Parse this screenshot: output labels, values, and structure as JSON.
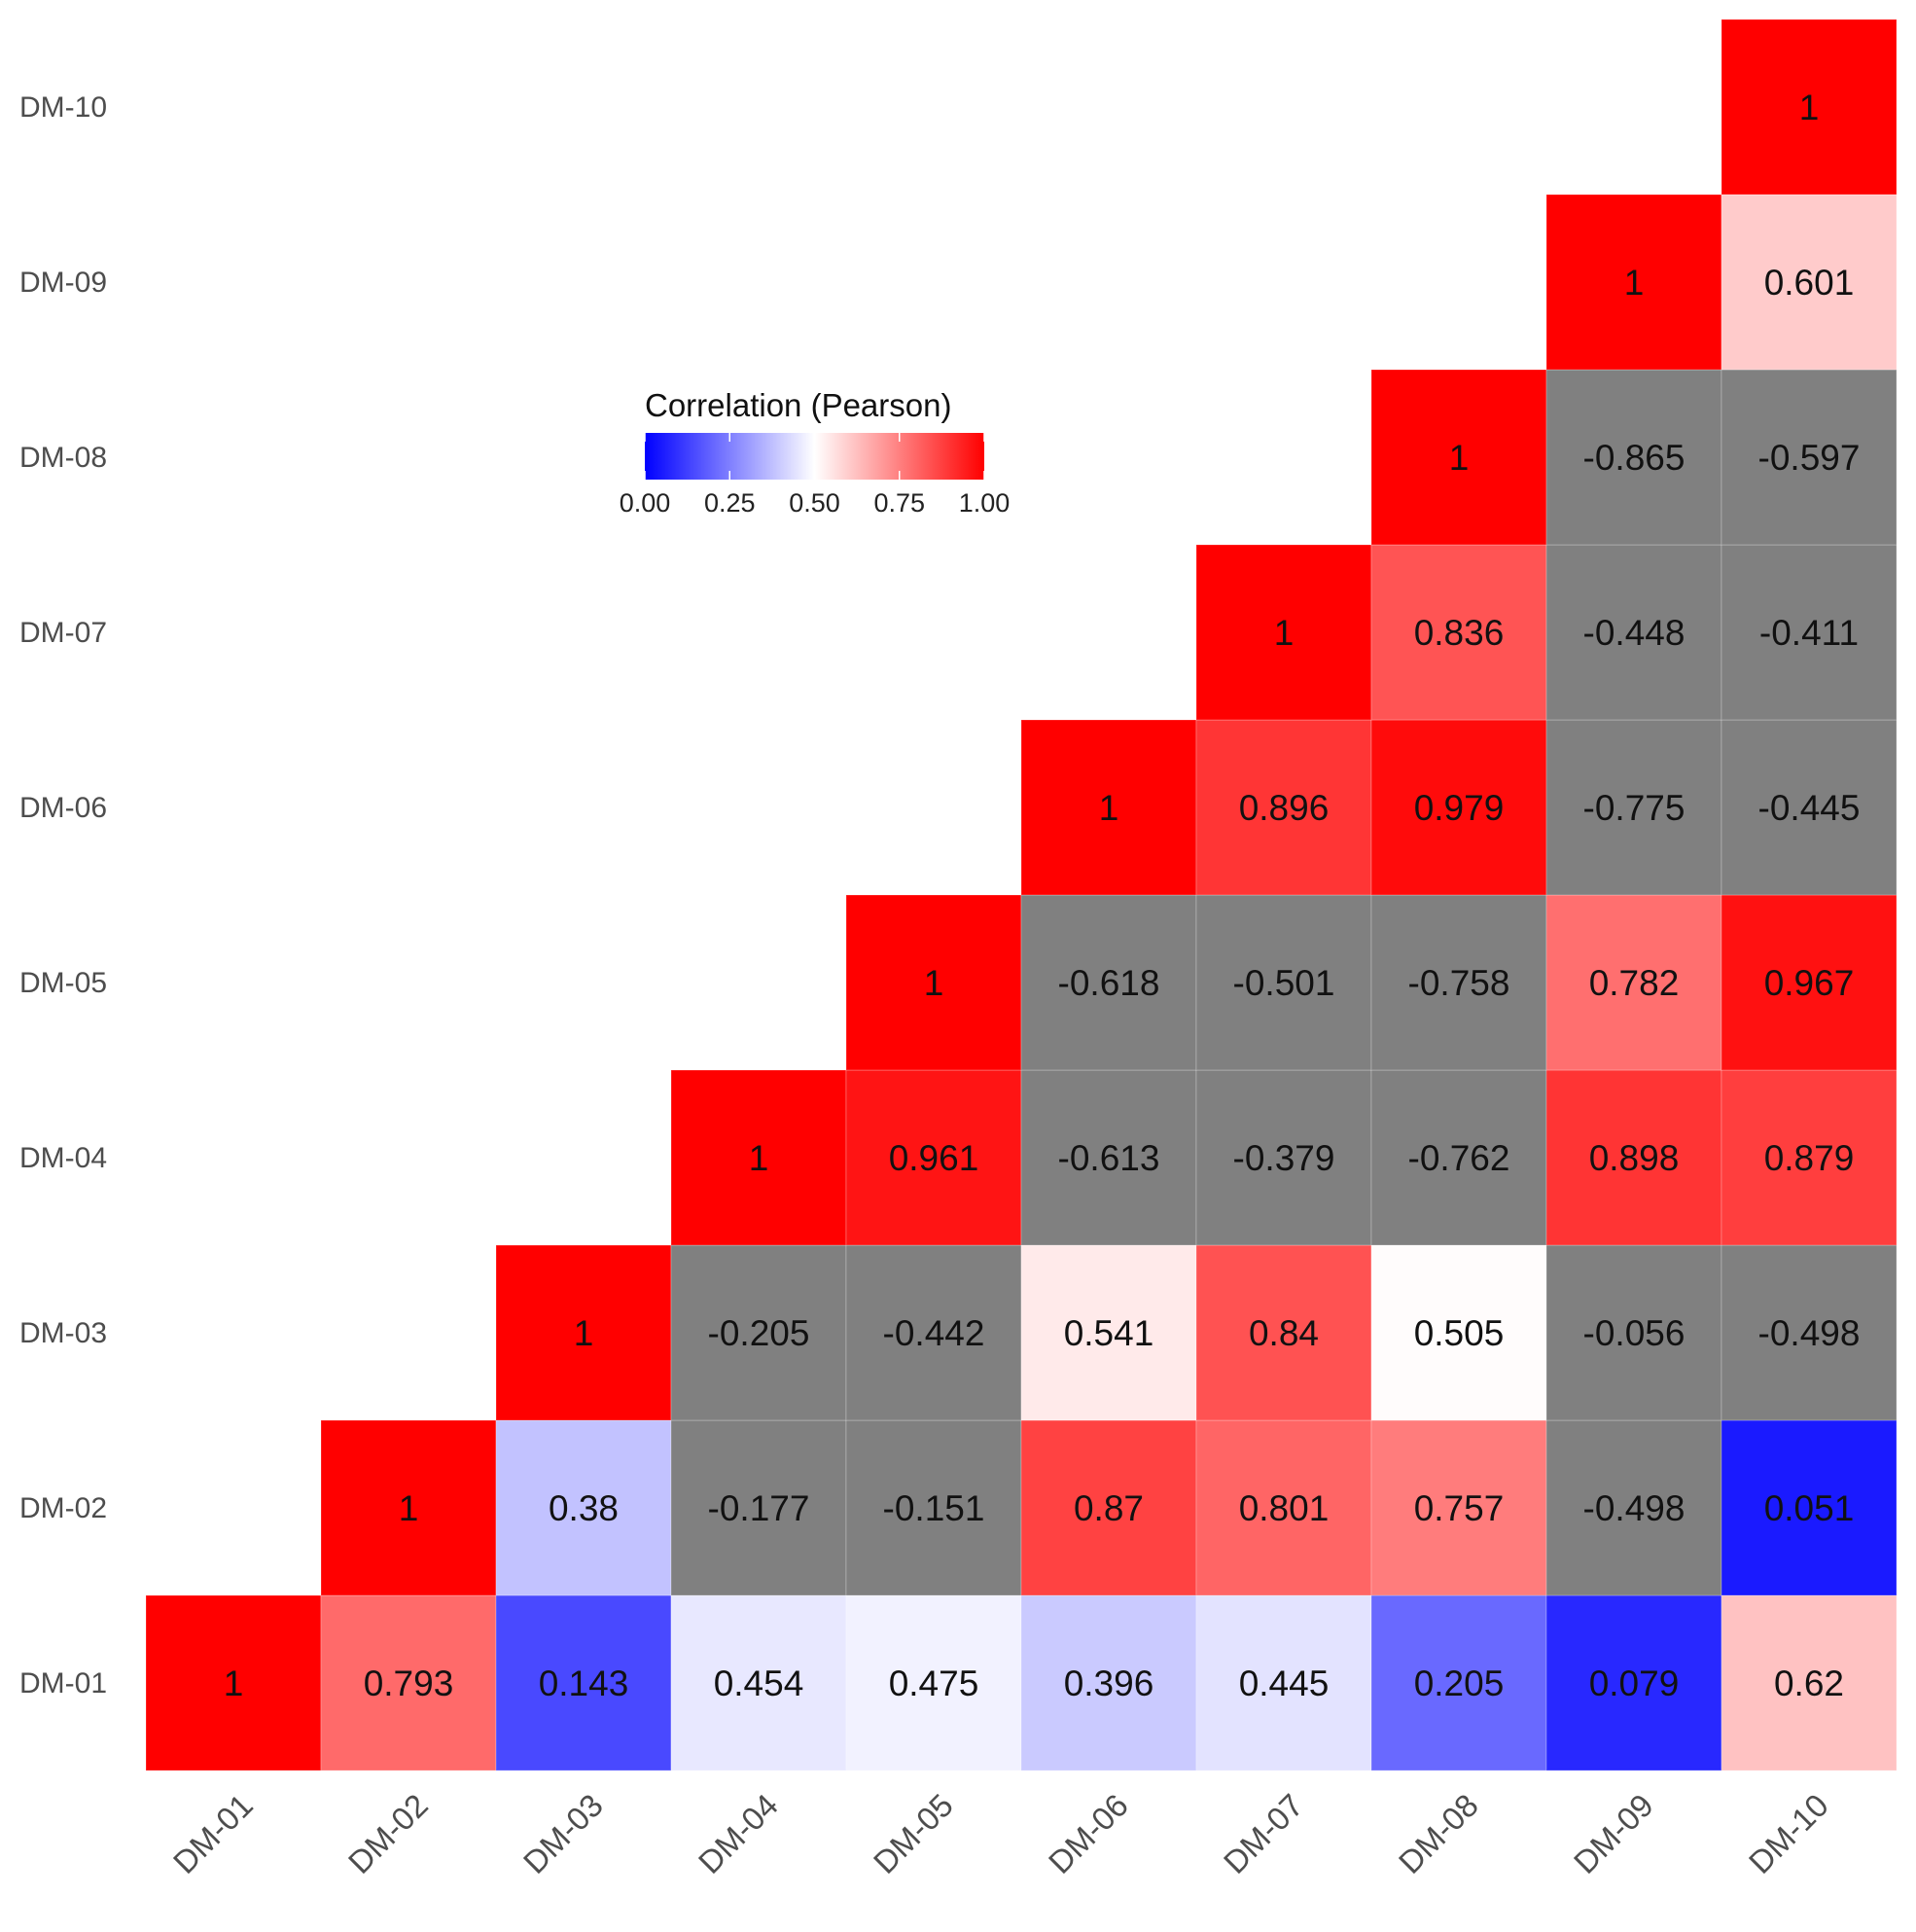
{
  "chart_data": {
    "type": "heatmap",
    "title": "",
    "xlabel": "",
    "ylabel": "",
    "triangle": "upper",
    "labels": [
      "DM-01",
      "DM-02",
      "DM-03",
      "DM-04",
      "DM-05",
      "DM-06",
      "DM-07",
      "DM-08",
      "DM-09",
      "DM-10"
    ],
    "cells": [
      {
        "row": "DM-01",
        "col": "DM-01",
        "value": 1,
        "text": "1"
      },
      {
        "row": "DM-01",
        "col": "DM-02",
        "value": 0.793,
        "text": "0.793"
      },
      {
        "row": "DM-01",
        "col": "DM-03",
        "value": 0.143,
        "text": "0.143"
      },
      {
        "row": "DM-01",
        "col": "DM-04",
        "value": 0.454,
        "text": "0.454"
      },
      {
        "row": "DM-01",
        "col": "DM-05",
        "value": 0.475,
        "text": "0.475"
      },
      {
        "row": "DM-01",
        "col": "DM-06",
        "value": 0.396,
        "text": "0.396"
      },
      {
        "row": "DM-01",
        "col": "DM-07",
        "value": 0.445,
        "text": "0.445"
      },
      {
        "row": "DM-01",
        "col": "DM-08",
        "value": 0.205,
        "text": "0.205"
      },
      {
        "row": "DM-01",
        "col": "DM-09",
        "value": 0.079,
        "text": "0.079"
      },
      {
        "row": "DM-01",
        "col": "DM-10",
        "value": 0.62,
        "text": "0.62"
      },
      {
        "row": "DM-02",
        "col": "DM-02",
        "value": 1,
        "text": "1"
      },
      {
        "row": "DM-02",
        "col": "DM-03",
        "value": 0.38,
        "text": "0.38"
      },
      {
        "row": "DM-02",
        "col": "DM-04",
        "value": -0.177,
        "text": "-0.177"
      },
      {
        "row": "DM-02",
        "col": "DM-05",
        "value": -0.151,
        "text": "-0.151"
      },
      {
        "row": "DM-02",
        "col": "DM-06",
        "value": 0.87,
        "text": "0.87"
      },
      {
        "row": "DM-02",
        "col": "DM-07",
        "value": 0.801,
        "text": "0.801"
      },
      {
        "row": "DM-02",
        "col": "DM-08",
        "value": 0.757,
        "text": "0.757"
      },
      {
        "row": "DM-02",
        "col": "DM-09",
        "value": -0.498,
        "text": "-0.498"
      },
      {
        "row": "DM-02",
        "col": "DM-10",
        "value": 0.051,
        "text": "0.051"
      },
      {
        "row": "DM-03",
        "col": "DM-03",
        "value": 1,
        "text": "1"
      },
      {
        "row": "DM-03",
        "col": "DM-04",
        "value": -0.205,
        "text": "-0.205"
      },
      {
        "row": "DM-03",
        "col": "DM-05",
        "value": -0.442,
        "text": "-0.442"
      },
      {
        "row": "DM-03",
        "col": "DM-06",
        "value": 0.541,
        "text": "0.541"
      },
      {
        "row": "DM-03",
        "col": "DM-07",
        "value": 0.84,
        "text": "0.84"
      },
      {
        "row": "DM-03",
        "col": "DM-08",
        "value": 0.505,
        "text": "0.505"
      },
      {
        "row": "DM-03",
        "col": "DM-09",
        "value": -0.056,
        "text": "-0.056"
      },
      {
        "row": "DM-03",
        "col": "DM-10",
        "value": -0.498,
        "text": "-0.498"
      },
      {
        "row": "DM-04",
        "col": "DM-04",
        "value": 1,
        "text": "1"
      },
      {
        "row": "DM-04",
        "col": "DM-05",
        "value": 0.961,
        "text": "0.961"
      },
      {
        "row": "DM-04",
        "col": "DM-06",
        "value": -0.613,
        "text": "-0.613"
      },
      {
        "row": "DM-04",
        "col": "DM-07",
        "value": -0.379,
        "text": "-0.379"
      },
      {
        "row": "DM-04",
        "col": "DM-08",
        "value": -0.762,
        "text": "-0.762"
      },
      {
        "row": "DM-04",
        "col": "DM-09",
        "value": 0.898,
        "text": "0.898"
      },
      {
        "row": "DM-04",
        "col": "DM-10",
        "value": 0.879,
        "text": "0.879"
      },
      {
        "row": "DM-05",
        "col": "DM-05",
        "value": 1,
        "text": "1"
      },
      {
        "row": "DM-05",
        "col": "DM-06",
        "value": -0.618,
        "text": "-0.618"
      },
      {
        "row": "DM-05",
        "col": "DM-07",
        "value": -0.501,
        "text": "-0.501"
      },
      {
        "row": "DM-05",
        "col": "DM-08",
        "value": -0.758,
        "text": "-0.758"
      },
      {
        "row": "DM-05",
        "col": "DM-09",
        "value": 0.782,
        "text": "0.782"
      },
      {
        "row": "DM-05",
        "col": "DM-10",
        "value": 0.967,
        "text": "0.967"
      },
      {
        "row": "DM-06",
        "col": "DM-06",
        "value": 1,
        "text": "1"
      },
      {
        "row": "DM-06",
        "col": "DM-07",
        "value": 0.896,
        "text": "0.896"
      },
      {
        "row": "DM-06",
        "col": "DM-08",
        "value": 0.979,
        "text": "0.979"
      },
      {
        "row": "DM-06",
        "col": "DM-09",
        "value": -0.775,
        "text": "-0.775"
      },
      {
        "row": "DM-06",
        "col": "DM-10",
        "value": -0.445,
        "text": "-0.445"
      },
      {
        "row": "DM-07",
        "col": "DM-07",
        "value": 1,
        "text": "1"
      },
      {
        "row": "DM-07",
        "col": "DM-08",
        "value": 0.836,
        "text": "0.836"
      },
      {
        "row": "DM-07",
        "col": "DM-09",
        "value": -0.448,
        "text": "-0.448"
      },
      {
        "row": "DM-07",
        "col": "DM-10",
        "value": -0.411,
        "text": "-0.411"
      },
      {
        "row": "DM-08",
        "col": "DM-08",
        "value": 1,
        "text": "1"
      },
      {
        "row": "DM-08",
        "col": "DM-09",
        "value": -0.865,
        "text": "-0.865"
      },
      {
        "row": "DM-08",
        "col": "DM-10",
        "value": -0.597,
        "text": "-0.597"
      },
      {
        "row": "DM-09",
        "col": "DM-09",
        "value": 1,
        "text": "1"
      },
      {
        "row": "DM-09",
        "col": "DM-10",
        "value": 0.601,
        "text": "0.601"
      },
      {
        "row": "DM-10",
        "col": "DM-10",
        "value": 1,
        "text": "1"
      }
    ],
    "color_scale": {
      "limits": [
        0,
        1
      ],
      "low": "#0000FF",
      "mid": "#FFFFFF",
      "high": "#FF0000",
      "midpoint": 0.5,
      "na_value": "#808080"
    },
    "legend": {
      "title": "Correlation (Pearson)",
      "ticks": [
        "0.00",
        "0.25",
        "0.50",
        "0.75",
        "1.00"
      ],
      "tick_values": [
        0,
        0.25,
        0.5,
        0.75,
        1
      ],
      "position": "inside-top-center",
      "orientation": "horizontal"
    }
  }
}
